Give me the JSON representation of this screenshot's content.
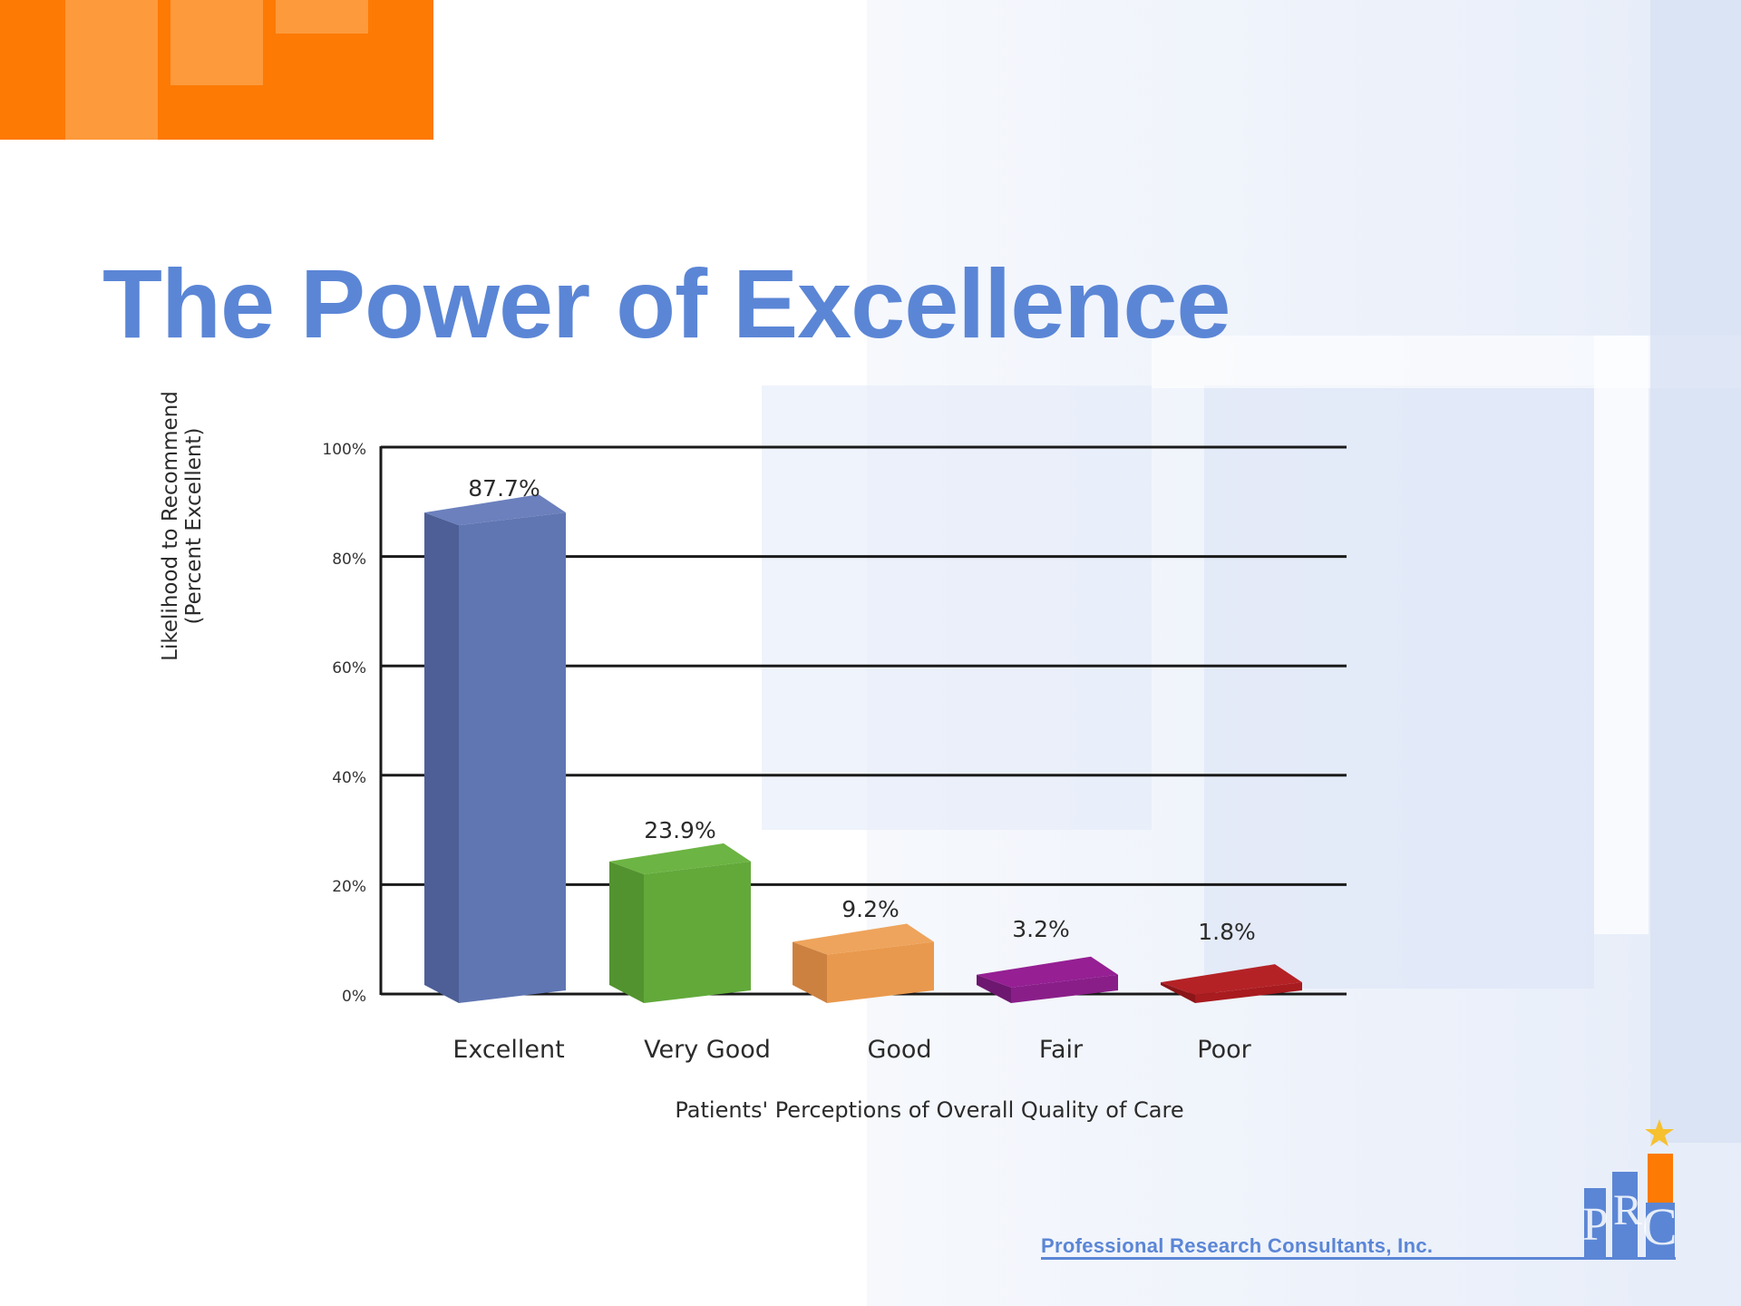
{
  "slide": {
    "title": "The Power of Excellence",
    "colors": {
      "title": "#5b86d6",
      "orange_block": "#fd7a04",
      "orange_light": "#fd9a3c",
      "background_tint": "#e4ebf8"
    }
  },
  "chart_data": {
    "type": "bar",
    "style": "3d",
    "title": "",
    "categories": [
      "Excellent",
      "Very Good",
      "Good",
      "Fair",
      "Poor"
    ],
    "values": [
      87.7,
      23.9,
      9.2,
      3.2,
      1.8
    ],
    "value_labels": [
      "87.7%",
      "23.9%",
      "9.2%",
      "3.2%",
      "1.8%"
    ],
    "colors": [
      "#6076b3",
      "#62a93a",
      "#e9994d",
      "#8a1e89",
      "#a81b1f"
    ],
    "side_colors": [
      "#4d5f96",
      "#53932f",
      "#cc8140",
      "#6e1770",
      "#8b1518"
    ],
    "top_colors": [
      "#6b80bd",
      "#6cb443",
      "#eea45c",
      "#951f93",
      "#b42226"
    ],
    "xlabel": "Patients' Perceptions of Overall Quality of Care",
    "ylabel_line1": "Likelihood to Recommend",
    "ylabel_line2": "(Percent Excellent)",
    "ylim": [
      0,
      100
    ],
    "yticks": [
      "100%",
      "80%",
      "60%",
      "40%",
      "20%",
      "0%"
    ],
    "grid": true,
    "legend": "none"
  },
  "footer": {
    "company": "Professional Research Consultants, Inc.",
    "logo_letters": "PRC"
  }
}
